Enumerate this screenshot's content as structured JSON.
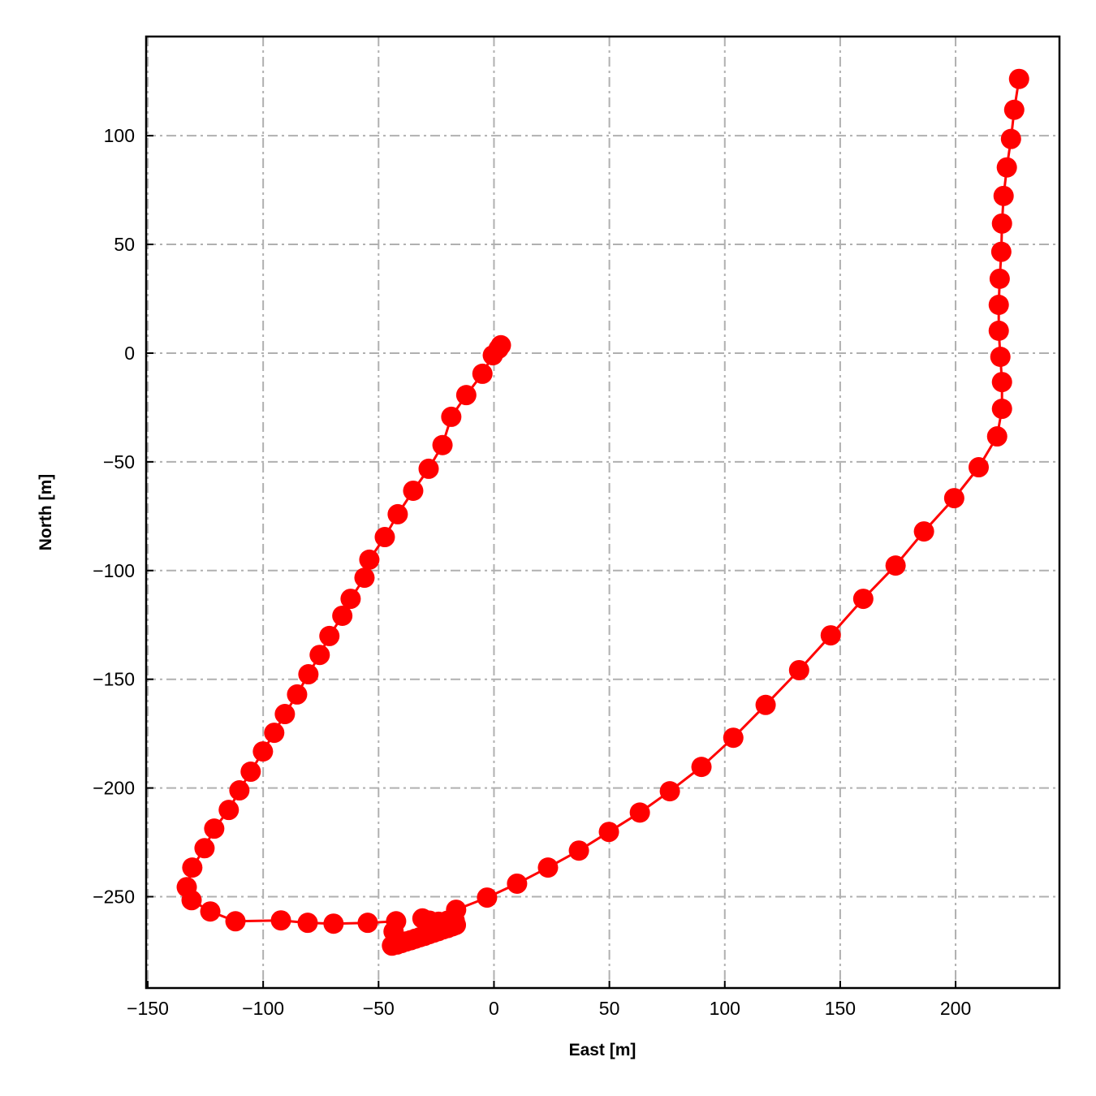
{
  "chart_data": {
    "type": "line",
    "title": "",
    "xlabel": "East [m]",
    "ylabel": "North [m]",
    "xlim": [
      -150.7,
      245
    ],
    "ylim": [
      -292,
      145.6
    ],
    "xticks": [
      -150,
      -100,
      -50,
      0,
      50,
      100,
      150,
      200
    ],
    "yticks": [
      100,
      50,
      0,
      -50,
      -100,
      -150,
      -200,
      -250
    ],
    "xtick_labels": [
      "−150",
      "−100",
      "−50",
      "0",
      "50",
      "100",
      "150",
      "200"
    ],
    "ytick_labels": [
      "100",
      "50",
      "0",
      "−50",
      "−100",
      "−150",
      "−200",
      "−250"
    ],
    "grid": true,
    "grid_style": "dash-dot",
    "marker": "circle",
    "color": "#ff0000",
    "grid_color": "#b0b0b0",
    "series": [
      {
        "x": [
          3,
          2,
          -0.5,
          -5,
          -12,
          -18.5,
          -22.3,
          -28.3,
          -35,
          -41.7,
          -47.3,
          -54,
          -56.1,
          -62.1,
          -65.7,
          -71.3,
          -75.5,
          -80.4,
          -85.3,
          -90.6,
          -95.2,
          -100.1,
          -105.4,
          -110.3,
          -114.9,
          -121.2,
          -125.4,
          -130.7,
          -133.1,
          -131,
          -122.9,
          -112,
          -92.3,
          -80.7,
          -69.5,
          -54.7,
          -42.4,
          -43.5,
          -44.2,
          -42,
          -40,
          -38,
          -36,
          -34,
          -32,
          -30,
          -28,
          -26,
          -24,
          -22,
          -20,
          -18,
          -16.5,
          -17,
          -20,
          -24,
          -28,
          -31,
          -16.4,
          -3,
          10,
          23.4,
          36.8,
          49.8,
          63.2,
          76.2,
          89.9,
          103.7,
          117.7,
          132.2,
          145.9,
          160,
          174,
          186.3,
          199.4,
          210,
          218,
          220.1,
          220.1,
          219.4,
          218.7,
          218.7,
          219.1,
          219.8,
          220.1,
          220.8,
          222.2,
          224,
          225.4,
          227.5
        ],
        "y": [
          3.6,
          2,
          -1,
          -9.5,
          -19.3,
          -29.3,
          -42.3,
          -53.2,
          -63.3,
          -74.1,
          -84.6,
          -95,
          -103.3,
          -113,
          -120.8,
          -130.1,
          -138.8,
          -147.7,
          -157,
          -166,
          -174.6,
          -183.2,
          -192.5,
          -201.1,
          -210.1,
          -218.7,
          -227.7,
          -236.6,
          -245.6,
          -251.6,
          -256.8,
          -261.3,
          -260.9,
          -262,
          -262.4,
          -262,
          -261.3,
          -266,
          -272.5,
          -272,
          -271.3,
          -270.6,
          -270,
          -269.3,
          -268.6,
          -268,
          -267.2,
          -266.5,
          -265.8,
          -265,
          -264.4,
          -263.6,
          -263,
          -261,
          -261,
          -261.5,
          -261,
          -260,
          -256,
          -250.4,
          -244,
          -236.6,
          -228.8,
          -220.2,
          -211.3,
          -201.5,
          -190.3,
          -176.9,
          -161.8,
          -145.8,
          -129.8,
          -113,
          -97.7,
          -82,
          -66.7,
          -52.5,
          -38.3,
          -25.6,
          -13.3,
          -1.7,
          10.3,
          22.2,
          34.2,
          46.6,
          59.6,
          72.3,
          85.4,
          98.5,
          111.9,
          126.1
        ]
      }
    ]
  }
}
